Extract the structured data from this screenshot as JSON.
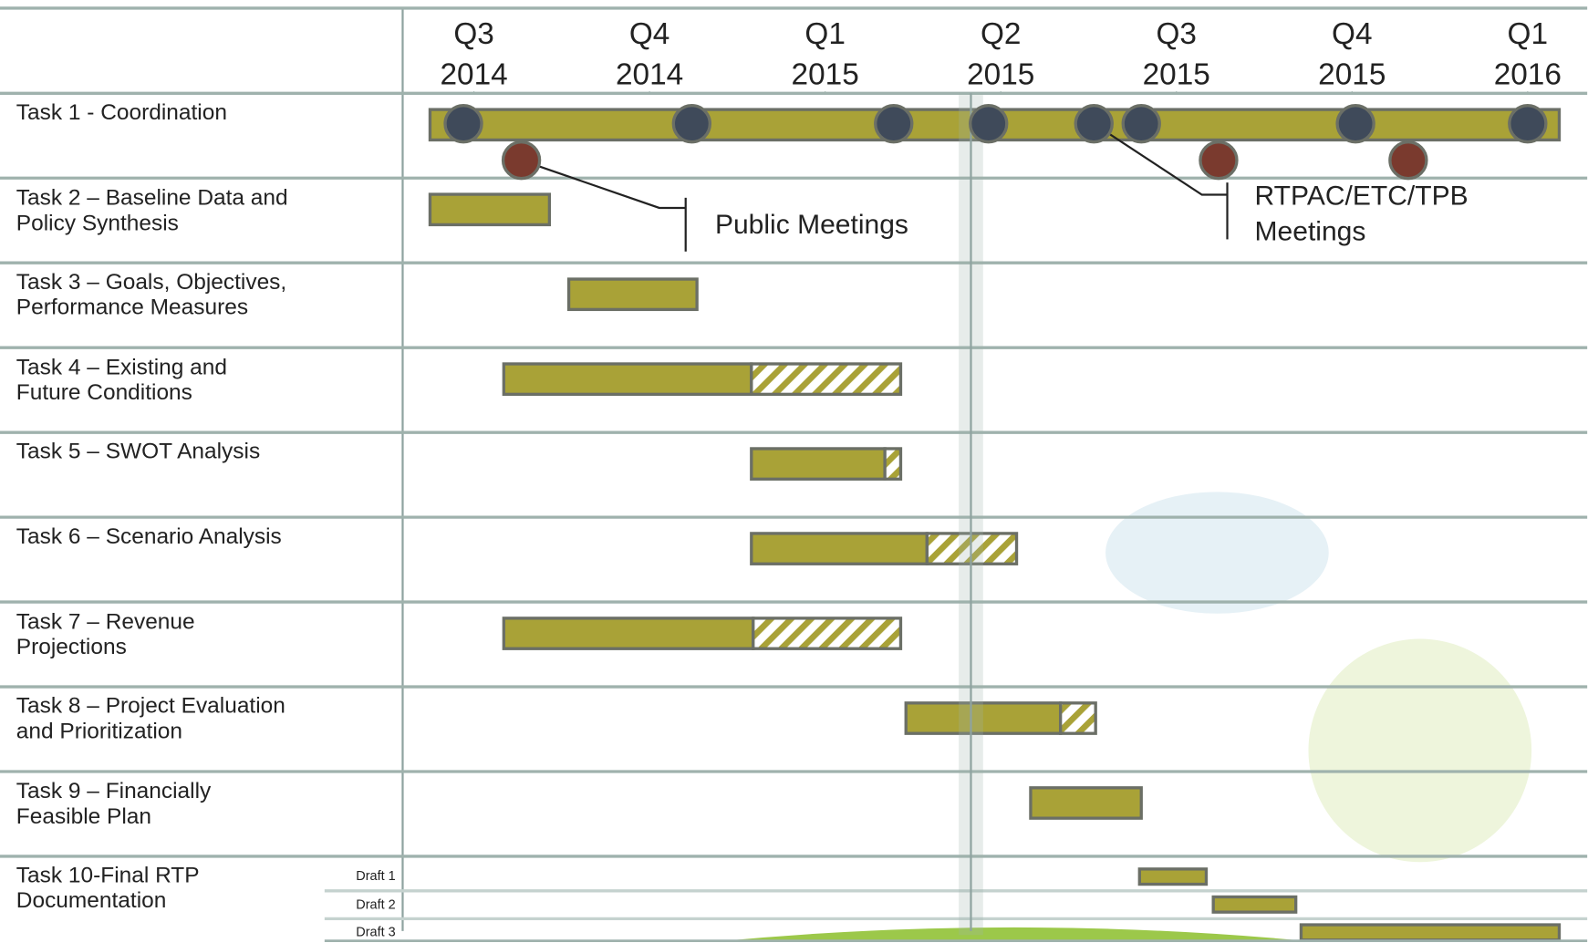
{
  "chart_data": {
    "type": "gantt",
    "xticks": [
      {
        "value": 0,
        "label": "Q3 2014"
      },
      {
        "value": 1,
        "label": "Q4 2014"
      },
      {
        "value": 2,
        "label": "Q1 2015"
      },
      {
        "value": 3,
        "label": "Q2 2015"
      },
      {
        "value": 4,
        "label": "Q3 2015"
      },
      {
        "value": 5,
        "label": "Q4 2015"
      },
      {
        "value": 6,
        "label": "Q1 2016"
      }
    ],
    "xlim": [
      -0.4,
      6.34
    ],
    "current_date": 2.83,
    "bar_color": "#a9a237",
    "tasks": [
      {
        "name": "Task 1 - Coordination",
        "bars": [
          {
            "start": -0.25,
            "end": 6.18
          }
        ]
      },
      {
        "name": "Task 2 – Baseline Data and Policy Synthesis",
        "bars": [
          {
            "start": -0.25,
            "end": 0.43
          }
        ]
      },
      {
        "name": "Task 3 – Goals, Objectives, Performance Measures",
        "bars": [
          {
            "start": 0.54,
            "end": 1.27
          }
        ]
      },
      {
        "name": "Task 4 – Existing and Future Conditions",
        "bars": [
          {
            "start": 0.17,
            "end": 1.58,
            "hatch_end": 2.43
          }
        ]
      },
      {
        "name": "Task 5 – SWOT Analysis",
        "bars": [
          {
            "start": 1.58,
            "end": 2.34,
            "hatch_end": 2.43
          }
        ]
      },
      {
        "name": "Task 6 – Scenario Analysis",
        "bars": [
          {
            "start": 1.58,
            "end": 2.58,
            "hatch_end": 3.09
          }
        ]
      },
      {
        "name": "Task 7 – Revenue Projections",
        "bars": [
          {
            "start": 0.17,
            "end": 1.59,
            "hatch_end": 2.43
          }
        ]
      },
      {
        "name": "Task 8 – Project Evaluation and Prioritization",
        "bars": [
          {
            "start": 2.46,
            "end": 3.34,
            "hatch_end": 3.54
          }
        ]
      },
      {
        "name": "Task 9 – Financially Feasible Plan",
        "bars": [
          {
            "start": 3.17,
            "end": 3.8
          }
        ]
      },
      {
        "name": "Task 10-Final RTP Documentation",
        "bars": [
          {
            "label": "Draft 1",
            "start": 3.79,
            "end": 4.17
          },
          {
            "label": "Draft 2",
            "start": 4.21,
            "end": 4.68
          },
          {
            "label": "Draft 3",
            "start": 4.71,
            "end": 6.18
          }
        ]
      }
    ],
    "milestones": [
      {
        "name": "Public Meetings",
        "color": "#7a3a2e",
        "values": [
          0.27,
          4.24,
          5.32
        ]
      },
      {
        "name": "RTPAC/ETC/TPB Meetings",
        "color": "#3f4a5a",
        "values": [
          -0.06,
          1.24,
          2.39,
          2.93,
          3.53,
          3.8,
          5.02,
          6.0
        ]
      }
    ]
  }
}
